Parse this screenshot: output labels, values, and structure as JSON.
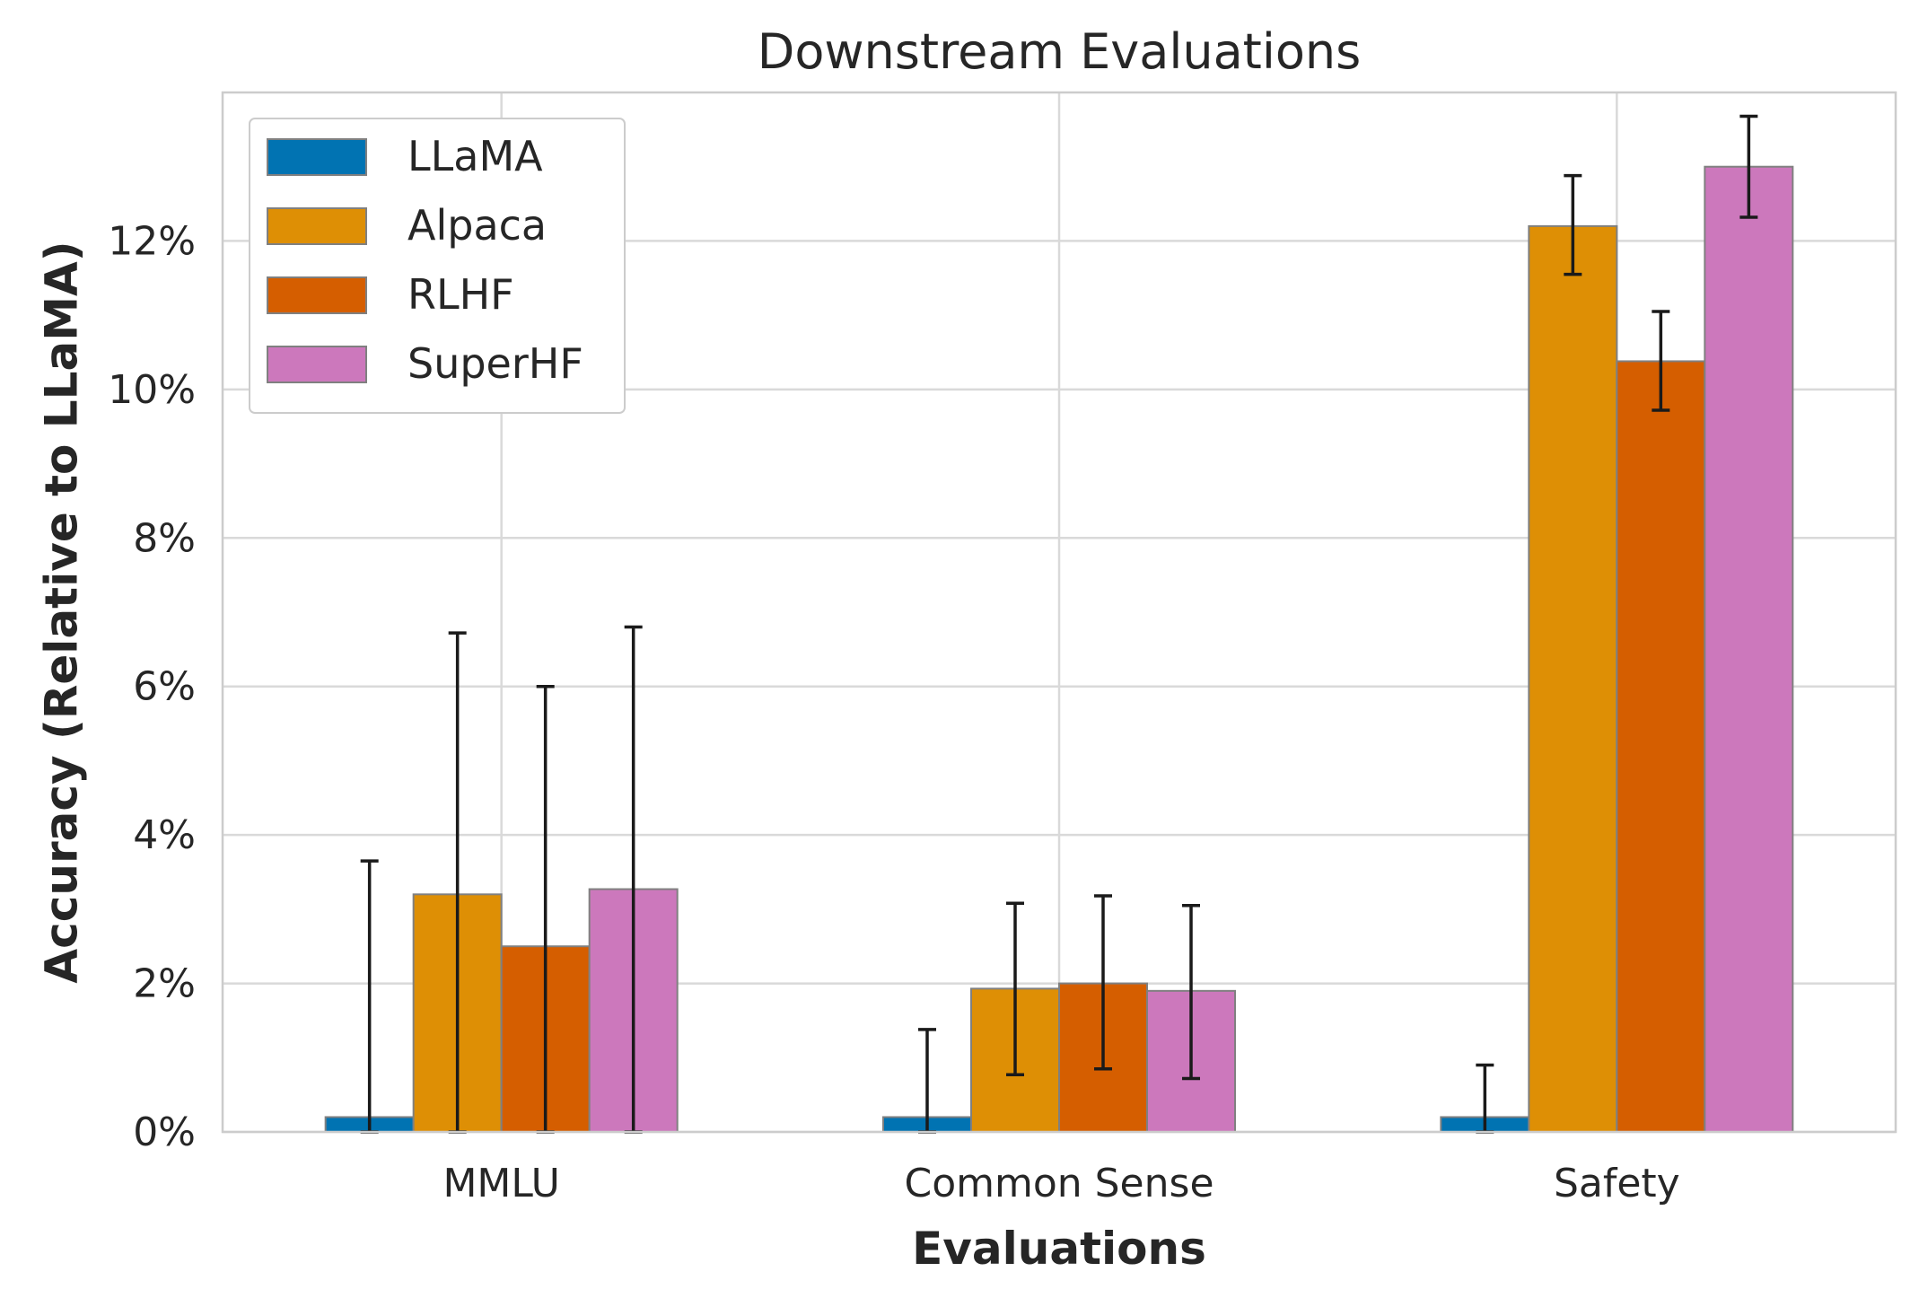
{
  "chart_data": {
    "type": "bar",
    "title": "Downstream Evaluations",
    "xlabel": "Evaluations",
    "ylabel": "Accuracy (Relative to LLaMA)",
    "categories": [
      "MMLU",
      "Common Sense",
      "Safety"
    ],
    "ylim": [
      0,
      14
    ],
    "yticks": [
      0,
      2,
      4,
      6,
      8,
      10,
      12
    ],
    "ytick_labels": [
      "0%",
      "2%",
      "4%",
      "6%",
      "8%",
      "10%",
      "12%"
    ],
    "grid": true,
    "legend_position": "upper-left",
    "series": [
      {
        "name": "LLaMA",
        "color": "#0173b2",
        "values": [
          0.2,
          0.2,
          0.2
        ],
        "err_low": [
          0.0,
          0.0,
          0.0
        ],
        "err_high": [
          3.65,
          1.38,
          0.9
        ]
      },
      {
        "name": "Alpaca",
        "color": "#de8f05",
        "values": [
          3.2,
          1.93,
          12.2
        ],
        "err_low": [
          0.0,
          0.77,
          11.55
        ],
        "err_high": [
          6.72,
          3.08,
          12.88
        ]
      },
      {
        "name": "RLHF",
        "color": "#d55e00",
        "values": [
          2.5,
          2.0,
          10.38
        ],
        "err_low": [
          0.0,
          0.85,
          9.72
        ],
        "err_high": [
          6.0,
          3.18,
          11.05
        ]
      },
      {
        "name": "SuperHF",
        "color": "#cc78bc",
        "values": [
          3.27,
          1.9,
          13.0
        ],
        "err_low": [
          0.0,
          0.72,
          12.32
        ],
        "err_high": [
          6.8,
          3.05,
          13.68
        ]
      }
    ]
  }
}
